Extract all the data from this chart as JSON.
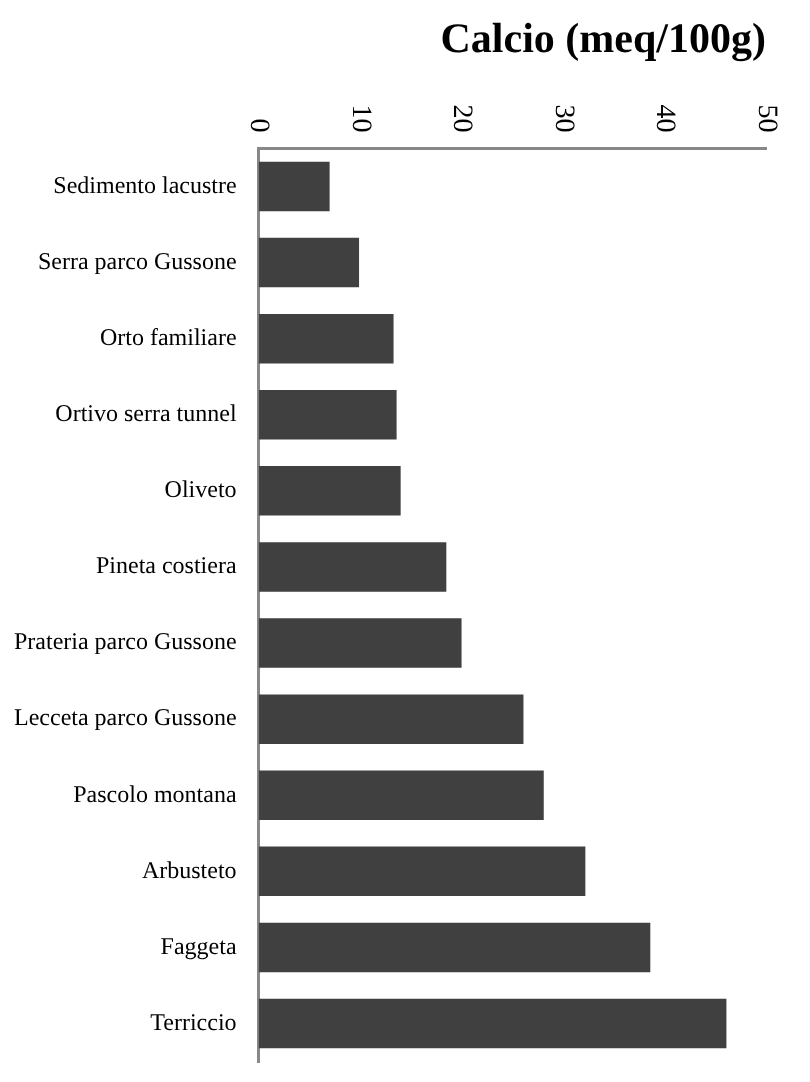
{
  "chart_data": {
    "type": "bar",
    "orientation": "horizontal",
    "title": "Calcio (meq/100g)",
    "categories": [
      "Sedimento lacustre",
      "Serra parco Gussone",
      "Orto familiare",
      "Ortivo serra tunnel",
      "Oliveto",
      "Pineta costiera",
      "Prateria parco Gussone",
      "Lecceta parco Gussone",
      "Pascolo montana",
      "Arbusteto",
      "Faggeta",
      "Terriccio"
    ],
    "values": [
      7.0,
      9.9,
      13.3,
      13.6,
      14.0,
      18.5,
      20.0,
      26.1,
      28.1,
      32.2,
      38.6,
      46.1
    ],
    "color": "#404040",
    "xlim": [
      0,
      50
    ],
    "xticks": [
      0,
      10,
      20,
      30,
      40,
      50
    ],
    "grid": false,
    "legend": false
  }
}
